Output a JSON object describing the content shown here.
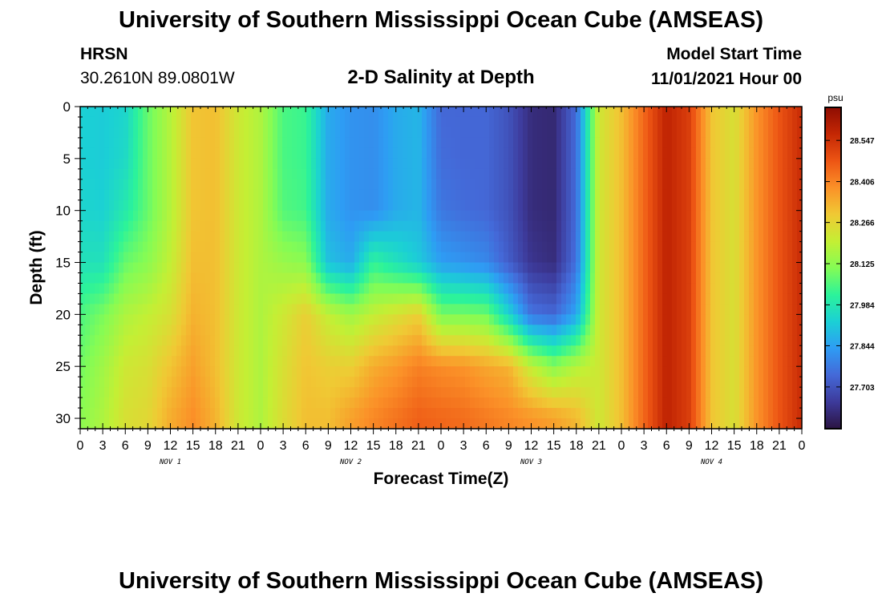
{
  "chart_data": {
    "type": "heatmap",
    "title": "University of Southern Mississippi Ocean Cube (AMSEAS)",
    "station": "HRSN",
    "location": "30.2610N  89.0801W",
    "subtitle": "2-D Salinity at Depth",
    "model_start_label": "Model Start Time",
    "model_start_value": "11/01/2021 Hour 00",
    "xlabel": "Forecast Time(Z)",
    "ylabel": "Depth (ft)",
    "x_hours_range": [
      0,
      96
    ],
    "x_tick_labels": [
      "0",
      "3",
      "6",
      "9",
      "12",
      "15",
      "18",
      "21",
      "0",
      "3",
      "6",
      "9",
      "12",
      "15",
      "18",
      "21",
      "0",
      "3",
      "6",
      "9",
      "12",
      "15",
      "18",
      "21",
      "0",
      "3",
      "6",
      "9",
      "12",
      "15",
      "18",
      "21",
      "0"
    ],
    "day_labels": [
      {
        "label": "NOV 1",
        "hour": 12
      },
      {
        "label": "NOV 2",
        "hour": 36
      },
      {
        "label": "NOV 3",
        "hour": 60
      },
      {
        "label": "NOV 4",
        "hour": 84
      }
    ],
    "ylim": [
      0,
      31
    ],
    "y_ticks": [
      0,
      5,
      10,
      15,
      20,
      25,
      30
    ],
    "colorbar": {
      "unit": "psu",
      "range": [
        27.56,
        28.66
      ],
      "tick_values": [
        27.703,
        27.844,
        27.984,
        28.125,
        28.266,
        28.406,
        28.547
      ],
      "tick_labels": [
        "27.703",
        "27.844",
        "27.984",
        "28.125",
        "28.266",
        "28.406",
        "28.547"
      ],
      "colors": [
        "#2b1442",
        "#3d3a9a",
        "#4469d8",
        "#2e9cf4",
        "#1bd0d5",
        "#2cf39a",
        "#84fc55",
        "#c4ef34",
        "#f0c934",
        "#fb9128",
        "#ed5514",
        "#c42704",
        "#8e0d02"
      ]
    },
    "columns_hours": [
      0,
      3,
      6,
      9,
      12,
      15,
      18,
      21,
      24,
      27,
      30,
      33,
      36,
      39,
      42,
      45,
      48,
      51,
      54,
      57,
      60,
      63,
      66,
      69,
      72,
      75,
      78,
      81,
      84,
      87,
      90,
      93,
      96
    ],
    "depth_profile_ft": [
      0,
      5,
      10,
      15,
      20,
      25,
      30
    ],
    "salinity_psu": [
      [
        27.93,
        27.93,
        27.94,
        27.97,
        28.05,
        28.09,
        28.12
      ],
      [
        27.92,
        27.92,
        27.93,
        27.97,
        28.1,
        28.15,
        28.17
      ],
      [
        27.94,
        27.95,
        27.99,
        28.08,
        28.17,
        28.22,
        28.24
      ],
      [
        28.08,
        28.08,
        28.08,
        28.12,
        28.2,
        28.24,
        28.26
      ],
      [
        28.18,
        28.18,
        28.18,
        28.2,
        28.24,
        28.3,
        28.34
      ],
      [
        28.3,
        28.3,
        28.3,
        28.31,
        28.33,
        28.36,
        28.39
      ],
      [
        28.31,
        28.31,
        28.31,
        28.31,
        28.31,
        28.31,
        28.33
      ],
      [
        28.22,
        28.22,
        28.22,
        28.22,
        28.22,
        28.22,
        28.22
      ],
      [
        28.17,
        28.17,
        28.17,
        28.17,
        28.17,
        28.17,
        28.17
      ],
      [
        28.05,
        28.05,
        28.06,
        28.14,
        28.22,
        28.24,
        28.25
      ],
      [
        28.03,
        28.03,
        28.04,
        28.12,
        28.28,
        28.3,
        28.31
      ],
      [
        27.86,
        27.86,
        27.86,
        27.9,
        28.2,
        28.28,
        28.31
      ],
      [
        27.82,
        27.82,
        27.82,
        27.86,
        28.15,
        28.28,
        28.36
      ],
      [
        27.81,
        27.81,
        27.81,
        28.02,
        28.2,
        28.34,
        28.4
      ],
      [
        27.86,
        27.86,
        27.86,
        27.97,
        28.24,
        28.37,
        28.43
      ],
      [
        27.88,
        27.88,
        27.88,
        27.92,
        28.28,
        28.41,
        28.46
      ],
      [
        27.74,
        27.75,
        27.77,
        27.84,
        28.1,
        28.39,
        28.45
      ],
      [
        27.74,
        27.74,
        27.75,
        27.82,
        28.1,
        28.38,
        28.44
      ],
      [
        27.74,
        27.74,
        27.74,
        27.8,
        28.09,
        28.35,
        28.42
      ],
      [
        27.7,
        27.7,
        27.7,
        27.72,
        27.94,
        28.33,
        28.4
      ],
      [
        27.62,
        27.62,
        27.62,
        27.64,
        27.76,
        28.2,
        28.38
      ],
      [
        27.61,
        27.61,
        27.61,
        27.62,
        27.74,
        28.12,
        28.36
      ],
      [
        27.75,
        27.75,
        27.75,
        27.76,
        27.85,
        28.18,
        28.32
      ],
      [
        28.22,
        28.22,
        28.22,
        28.22,
        28.22,
        28.22,
        28.22
      ],
      [
        28.31,
        28.31,
        28.31,
        28.31,
        28.31,
        28.31,
        28.31
      ],
      [
        28.45,
        28.45,
        28.45,
        28.45,
        28.45,
        28.45,
        28.45
      ],
      [
        28.58,
        28.58,
        28.58,
        28.58,
        28.58,
        28.58,
        28.58
      ],
      [
        28.52,
        28.52,
        28.52,
        28.52,
        28.52,
        28.52,
        28.52
      ],
      [
        28.3,
        28.3,
        28.3,
        28.3,
        28.3,
        28.3,
        28.3
      ],
      [
        28.24,
        28.24,
        28.24,
        28.24,
        28.24,
        28.24,
        28.24
      ],
      [
        28.38,
        28.38,
        28.38,
        28.38,
        28.38,
        28.38,
        28.38
      ],
      [
        28.48,
        28.48,
        28.48,
        28.48,
        28.48,
        28.48,
        28.48
      ],
      [
        28.56,
        28.56,
        28.56,
        28.56,
        28.56,
        28.56,
        28.56
      ]
    ]
  }
}
